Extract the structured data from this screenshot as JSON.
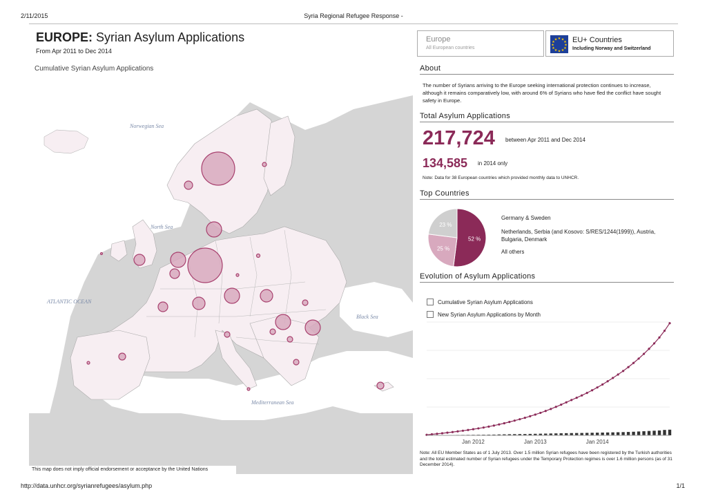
{
  "print": {
    "date": "2/11/2015",
    "title": "Syria Regional Refugee Response -",
    "url": "http://data.unhcr.org/syrianrefugees/asylum.php",
    "page": "1/1"
  },
  "map": {
    "title_bold": "EUROPE:",
    "title_rest": " Syrian Asylum Applications",
    "subtitle": "From Apr 2011 to Dec 2014",
    "cumulative_label": "Cumulative Syrian Asylum Applications",
    "seas": {
      "norwegian": "Norwegian Sea",
      "north": "North Sea",
      "atlantic": "ATLANTIC OCEAN",
      "black": "Black Sea",
      "mediterranean": "Mediterranean Sea"
    },
    "disclaimer": "This map does not imply official endorsement or acceptance by the United Nations",
    "bubble_color": "#c06a8e"
  },
  "region": {
    "name": "Europe",
    "sub": "All European countries"
  },
  "eu": {
    "name": "EU+ Countries",
    "sub": "Including Norway and Switzerland",
    "flag_color": "#1d3f99"
  },
  "about": {
    "title": "About",
    "text": "The number of Syrians arriving to the Europe seeking international protection continues to increase, although it remains comparatively low, with around 6% of Syrians who have fled the conflict have sought safety in Europe."
  },
  "totals": {
    "title": "Total Asylum Applications",
    "total": "217,724",
    "total_caption": "between Apr 2011 and Dec 2014",
    "year": "134,585",
    "year_caption": "in 2014 only",
    "note": "Note: Data for 38 European countries which provided monthly data to UNHCR."
  },
  "top": {
    "title": "Top Countries",
    "labels": [
      "Germany & Sweden",
      "Netherlands, Serbia (and Kosovo: S/RES/1244(1999)), Austria, Bulgaria, Denmark",
      "All others"
    ],
    "slices": [
      {
        "label": "52 %",
        "value": 52,
        "color": "#8b2a58"
      },
      {
        "label": "25 %",
        "value": 25,
        "color": "#d8a9be"
      },
      {
        "label": "23 %",
        "value": 23,
        "color": "#cfcfcf"
      }
    ]
  },
  "evolution": {
    "title": "Evolution of Asylum Applications",
    "legend": [
      "Cumulative Syrian Asylum Applications",
      "New Syrian Asylum Applications by Month"
    ],
    "note": "Note: All EU Member States as of 1 July 2013. Over 1.5 million Syrian refugees have been registered by the Turkish authorities and the total estimated number of Syrian refugees under the Temporary Protection regimes is over 1.6 million persons (as of 31 December 2014)."
  },
  "chart_data": {
    "type": "line",
    "x_ticks": [
      "Jan 2012",
      "Jan 2013",
      "Jan 2014"
    ],
    "series": [
      {
        "name": "Cumulative Syrian Asylum Applications",
        "type": "line",
        "color": "#8b2a58",
        "values": [
          1000,
          2000,
          3000,
          4000,
          5200,
          6400,
          7700,
          9000,
          10400,
          11900,
          13500,
          15200,
          17000,
          19000,
          21200,
          23500,
          26000,
          28600,
          31300,
          34100,
          37100,
          40300,
          43700,
          47300,
          51200,
          55300,
          59600,
          64100,
          68600,
          73000,
          77500,
          82300,
          87500,
          93000,
          98800,
          105000,
          111400,
          118000,
          125000,
          132500,
          140500,
          149000,
          158200,
          168000,
          178500,
          190000,
          203000,
          217724
        ]
      },
      {
        "name": "New Syrian Asylum Applications by Month",
        "type": "bar",
        "color": "#333333",
        "values": [
          300,
          400,
          450,
          500,
          600,
          700,
          800,
          900,
          1000,
          1100,
          1200,
          1300,
          1400,
          1500,
          1800,
          2000,
          2200,
          2400,
          2500,
          2600,
          2800,
          3000,
          3200,
          3400,
          3600,
          3800,
          4000,
          4200,
          4400,
          4500,
          4600,
          4800,
          5000,
          5200,
          5400,
          5600,
          5800,
          6000,
          6300,
          6600,
          7000,
          7500,
          8000,
          8500,
          9000,
          9500,
          10500,
          11000
        ]
      }
    ],
    "ylim": [
      0,
      220000
    ]
  }
}
